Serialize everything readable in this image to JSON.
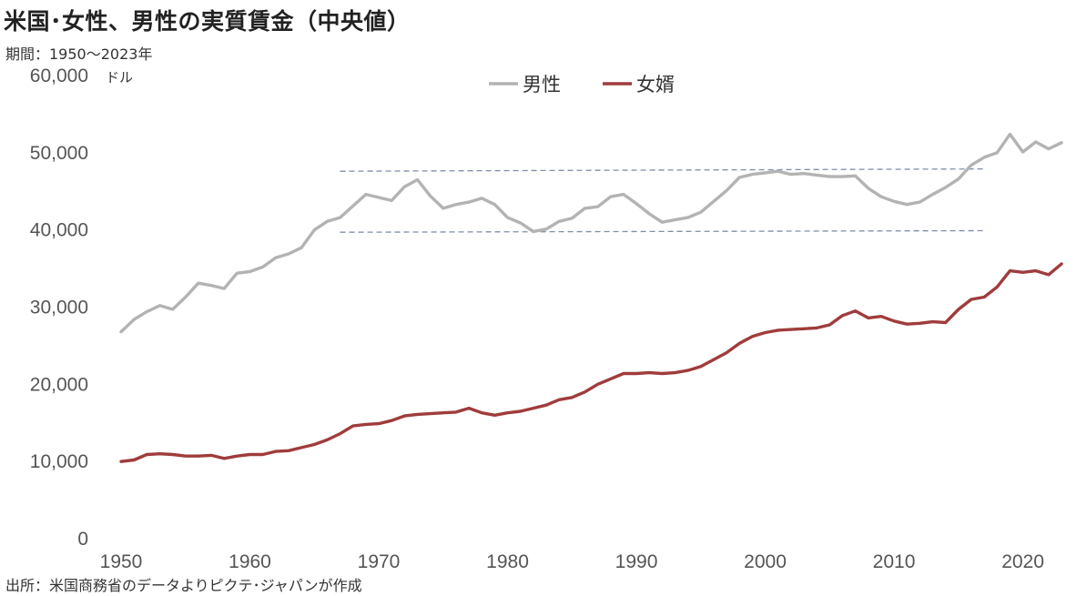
{
  "header": {
    "title": "米国･女性、男性の実質賃金（中央値）",
    "subtitle": "期間：1950～2023年"
  },
  "footer": {
    "source": "出所：米国商務省のデータよりピクテ･ジャパンが作成"
  },
  "chart_data": {
    "type": "line",
    "title": "米国･女性、男性の実質賃金（中央値）",
    "subtitle": "期間：1950～2023年",
    "ylabel": "ドル",
    "xlim": [
      1950,
      2023
    ],
    "ylim": [
      0,
      60000
    ],
    "xticks": [
      1950,
      1960,
      1970,
      1980,
      1990,
      2000,
      2010,
      2020
    ],
    "yticks": [
      0,
      10000,
      20000,
      30000,
      40000,
      50000,
      60000
    ],
    "ytick_labels": [
      "0",
      "10,000",
      "20,000",
      "30,000",
      "40,000",
      "50,000",
      "60,000"
    ],
    "grid": false,
    "legend_position": "top-center",
    "reference_lines": [
      {
        "x_start": 1967,
        "x_end": 2017,
        "y_start": 39700,
        "y_end": 39900,
        "color": "#7f8ea6",
        "style": "dashed"
      },
      {
        "x_start": 1967,
        "x_end": 2017,
        "y_start": 47600,
        "y_end": 47900,
        "color": "#7f8ea6",
        "style": "dashed"
      }
    ],
    "series": [
      {
        "name": "男性",
        "color": "#b3b3b3",
        "x": [
          1950,
          1951,
          1952,
          1953,
          1954,
          1955,
          1956,
          1957,
          1958,
          1959,
          1960,
          1961,
          1962,
          1963,
          1964,
          1965,
          1966,
          1967,
          1968,
          1969,
          1970,
          1971,
          1972,
          1973,
          1974,
          1975,
          1976,
          1977,
          1978,
          1979,
          1980,
          1981,
          1982,
          1983,
          1984,
          1985,
          1986,
          1987,
          1988,
          1989,
          1990,
          1991,
          1992,
          1993,
          1994,
          1995,
          1996,
          1997,
          1998,
          1999,
          2000,
          2001,
          2002,
          2003,
          2004,
          2005,
          2006,
          2007,
          2008,
          2009,
          2010,
          2011,
          2012,
          2013,
          2014,
          2015,
          2016,
          2017,
          2018,
          2019,
          2020,
          2021,
          2022,
          2023
        ],
        "y": [
          26800,
          28400,
          29400,
          30200,
          29700,
          31300,
          33100,
          32800,
          32400,
          34400,
          34600,
          35200,
          36400,
          36900,
          37700,
          40000,
          41100,
          41600,
          43100,
          44600,
          44200,
          43800,
          45600,
          46500,
          44400,
          42800,
          43300,
          43600,
          44100,
          43300,
          41600,
          40900,
          39800,
          40100,
          41100,
          41500,
          42800,
          43000,
          44300,
          44600,
          43400,
          42100,
          41000,
          41300,
          41600,
          42300,
          43700,
          45100,
          46800,
          47200,
          47400,
          47600,
          47200,
          47300,
          47100,
          46900,
          46900,
          47000,
          45400,
          44300,
          43700,
          43300,
          43600,
          44600,
          45500,
          46600,
          48400,
          49400,
          50000,
          52400,
          50100,
          51400,
          50500,
          51300
        ]
      },
      {
        "name": "女婿",
        "color": "#a03c3c",
        "x": [
          1950,
          1951,
          1952,
          1953,
          1954,
          1955,
          1956,
          1957,
          1958,
          1959,
          1960,
          1961,
          1962,
          1963,
          1964,
          1965,
          1966,
          1967,
          1968,
          1969,
          1970,
          1971,
          1972,
          1973,
          1974,
          1975,
          1976,
          1977,
          1978,
          1979,
          1980,
          1981,
          1982,
          1983,
          1984,
          1985,
          1986,
          1987,
          1988,
          1989,
          1990,
          1991,
          1992,
          1993,
          1994,
          1995,
          1996,
          1997,
          1998,
          1999,
          2000,
          2001,
          2002,
          2003,
          2004,
          2005,
          2006,
          2007,
          2008,
          2009,
          2010,
          2011,
          2012,
          2013,
          2014,
          2015,
          2016,
          2017,
          2018,
          2019,
          2020,
          2021,
          2022,
          2023
        ],
        "y": [
          10000,
          10200,
          10900,
          11000,
          10900,
          10700,
          10700,
          10800,
          10400,
          10700,
          10900,
          10900,
          11300,
          11400,
          11800,
          12200,
          12800,
          13600,
          14600,
          14800,
          14900,
          15300,
          15900,
          16100,
          16200,
          16300,
          16400,
          16900,
          16300,
          16000,
          16300,
          16500,
          16900,
          17300,
          18000,
          18300,
          19000,
          20000,
          20700,
          21400,
          21400,
          21500,
          21400,
          21500,
          21800,
          22300,
          23200,
          24100,
          25300,
          26200,
          26700,
          27000,
          27100,
          27200,
          27300,
          27700,
          28900,
          29500,
          28600,
          28800,
          28200,
          27800,
          27900,
          28100,
          28000,
          29700,
          31000,
          31300,
          32600,
          34700,
          34500,
          34700,
          34200,
          35600
        ]
      }
    ]
  }
}
